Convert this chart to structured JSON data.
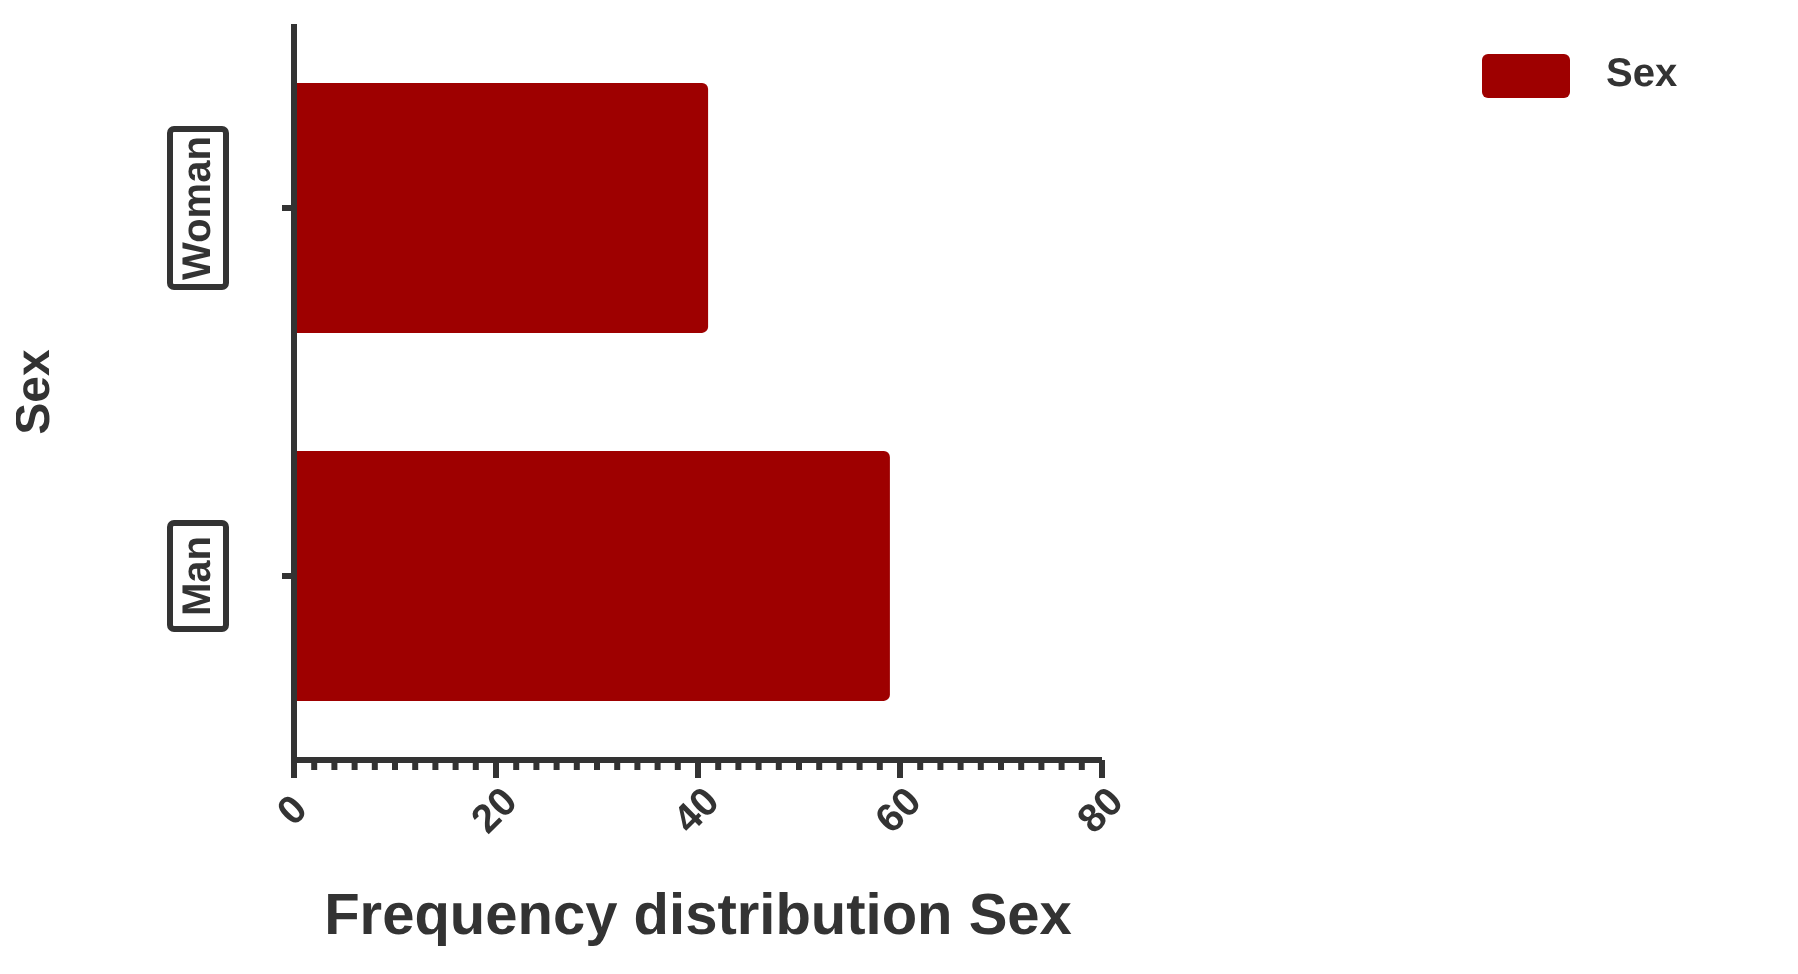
{
  "chart_data": {
    "type": "bar",
    "orientation": "horizontal",
    "xlabel": "Frequency distribution Sex",
    "ylabel": "Sex",
    "categories": [
      "Woman",
      "Man"
    ],
    "series": [
      {
        "name": "Sex",
        "color": "#9e0000",
        "values": [
          41,
          59
        ]
      }
    ],
    "xlim": [
      0,
      80
    ],
    "xticks": [
      0,
      {
        "value": 2,
        "label": null
      },
      {
        "value": 4,
        "label": null
      },
      {
        "value": 6,
        "label": null
      },
      {
        "value": 8,
        "label": null
      },
      {
        "value": 10,
        "label": null
      },
      {
        "value": 12,
        "label": null
      },
      {
        "value": 14,
        "label": null
      },
      {
        "value": 16,
        "label": null
      },
      {
        "value": 18,
        "label": null
      },
      20,
      {
        "value": 22,
        "label": null
      },
      {
        "value": 24,
        "label": null
      },
      {
        "value": 26,
        "label": null
      },
      {
        "value": 28,
        "label": null
      },
      {
        "value": 30,
        "label": null
      },
      {
        "value": 32,
        "label": null
      },
      {
        "value": 34,
        "label": null
      },
      {
        "value": 36,
        "label": null
      },
      {
        "value": 38,
        "label": null
      },
      40,
      {
        "value": 42,
        "label": null
      },
      {
        "value": 44,
        "label": null
      },
      {
        "value": 46,
        "label": null
      },
      {
        "value": 48,
        "label": null
      },
      {
        "value": 50,
        "label": null
      },
      {
        "value": 52,
        "label": null
      },
      {
        "value": 54,
        "label": null
      },
      {
        "value": 56,
        "label": null
      },
      {
        "value": 58,
        "label": null
      },
      60,
      {
        "value": 62,
        "label": null
      },
      {
        "value": 64,
        "label": null
      },
      {
        "value": 66,
        "label": null
      },
      {
        "value": 68,
        "label": null
      },
      {
        "value": 70,
        "label": null
      },
      {
        "value": 72,
        "label": null
      },
      {
        "value": 74,
        "label": null
      },
      {
        "value": 76,
        "label": null
      },
      {
        "value": 78,
        "label": null
      },
      80
    ],
    "grid": false,
    "legend": "top right"
  }
}
